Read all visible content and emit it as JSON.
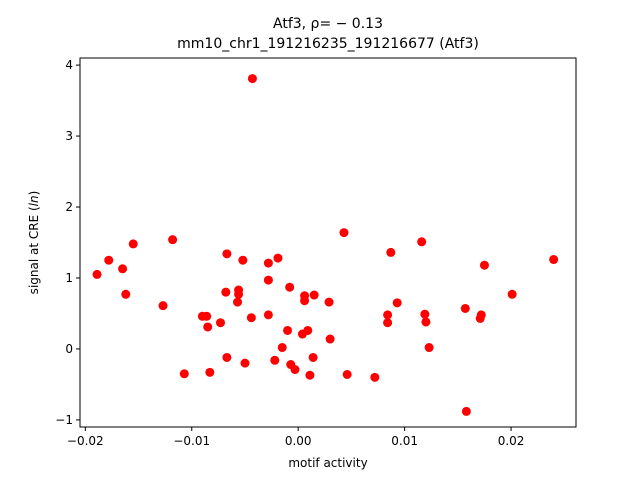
{
  "chart_data": {
    "type": "scatter",
    "title_line1": "Atf3, ρ= − 0.13",
    "title_line2": "mm10_chr1_191216235_191216677 (Atf3)",
    "xlabel": "motif activity",
    "ylabel": "signal at CRE (ln)",
    "ylabel_prefix": "signal at CRE (",
    "ylabel_italic": "ln",
    "ylabel_suffix": ")",
    "xlim": [
      -0.0205,
      0.0261
    ],
    "ylim": [
      -1.1,
      4.1
    ],
    "xticks": [
      -0.02,
      -0.01,
      0.0,
      0.01,
      0.02
    ],
    "xtick_labels": [
      "−0.02",
      "−0.01",
      "0.00",
      "0.01",
      "0.02"
    ],
    "yticks": [
      -1,
      0,
      1,
      2,
      3,
      4
    ],
    "ytick_labels": [
      "−1",
      "0",
      "1",
      "2",
      "3",
      "4"
    ],
    "marker_color": "#ff0000",
    "points": [
      {
        "x": -0.0043,
        "y": 3.81
      },
      {
        "x": -0.0189,
        "y": 1.05
      },
      {
        "x": -0.0178,
        "y": 1.25
      },
      {
        "x": -0.0165,
        "y": 1.13
      },
      {
        "x": -0.0162,
        "y": 0.77
      },
      {
        "x": -0.0155,
        "y": 1.48
      },
      {
        "x": -0.0127,
        "y": 0.61
      },
      {
        "x": -0.0118,
        "y": 1.54
      },
      {
        "x": -0.0107,
        "y": -0.35
      },
      {
        "x": -0.009,
        "y": 0.46
      },
      {
        "x": -0.0086,
        "y": 0.46
      },
      {
        "x": -0.0085,
        "y": 0.31
      },
      {
        "x": -0.0083,
        "y": -0.33
      },
      {
        "x": -0.0073,
        "y": 0.37
      },
      {
        "x": -0.0068,
        "y": 0.8
      },
      {
        "x": -0.0067,
        "y": 1.34
      },
      {
        "x": -0.0067,
        "y": -0.12
      },
      {
        "x": -0.0057,
        "y": 0.66
      },
      {
        "x": -0.0056,
        "y": 0.83
      },
      {
        "x": -0.0056,
        "y": 0.77
      },
      {
        "x": -0.0052,
        "y": 1.25
      },
      {
        "x": -0.005,
        "y": -0.2
      },
      {
        "x": -0.0044,
        "y": 0.44
      },
      {
        "x": -0.0028,
        "y": 1.21
      },
      {
        "x": -0.0028,
        "y": 0.97
      },
      {
        "x": -0.0028,
        "y": 0.48
      },
      {
        "x": -0.0022,
        "y": -0.16
      },
      {
        "x": -0.0019,
        "y": 1.28
      },
      {
        "x": -0.0015,
        "y": 0.02
      },
      {
        "x": -0.001,
        "y": 0.26
      },
      {
        "x": -0.0008,
        "y": 0.87
      },
      {
        "x": -0.0007,
        "y": -0.22
      },
      {
        "x": -0.0003,
        "y": -0.29
      },
      {
        "x": 0.0004,
        "y": 0.21
      },
      {
        "x": 0.0006,
        "y": 0.75
      },
      {
        "x": 0.0006,
        "y": 0.68
      },
      {
        "x": 0.0009,
        "y": 0.26
      },
      {
        "x": 0.0011,
        "y": -0.37
      },
      {
        "x": 0.0015,
        "y": 0.76
      },
      {
        "x": 0.0014,
        "y": -0.12
      },
      {
        "x": 0.0029,
        "y": 0.66
      },
      {
        "x": 0.003,
        "y": 0.14
      },
      {
        "x": 0.0043,
        "y": 1.64
      },
      {
        "x": 0.0046,
        "y": -0.36
      },
      {
        "x": 0.0072,
        "y": -0.4
      },
      {
        "x": 0.0084,
        "y": 0.48
      },
      {
        "x": 0.0084,
        "y": 0.37
      },
      {
        "x": 0.0087,
        "y": 1.36
      },
      {
        "x": 0.0093,
        "y": 0.65
      },
      {
        "x": 0.0116,
        "y": 1.51
      },
      {
        "x": 0.0119,
        "y": 0.49
      },
      {
        "x": 0.012,
        "y": 0.38
      },
      {
        "x": 0.0123,
        "y": 0.02
      },
      {
        "x": 0.0157,
        "y": 0.57
      },
      {
        "x": 0.0158,
        "y": -0.88
      },
      {
        "x": 0.0171,
        "y": 0.43
      },
      {
        "x": 0.0172,
        "y": 0.48
      },
      {
        "x": 0.0175,
        "y": 1.18
      },
      {
        "x": 0.0201,
        "y": 0.77
      },
      {
        "x": 0.024,
        "y": 1.26
      }
    ]
  }
}
